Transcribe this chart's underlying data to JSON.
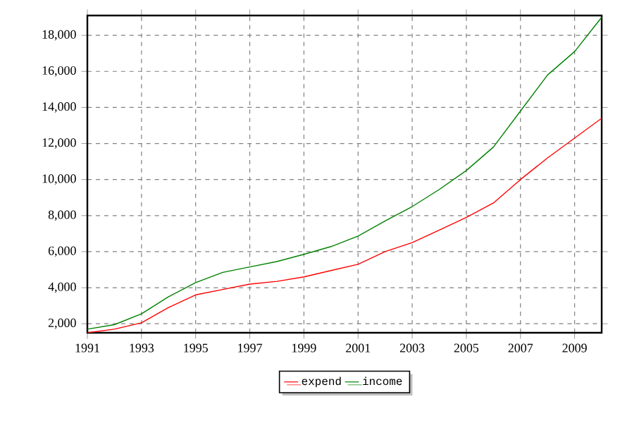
{
  "chart_data": {
    "type": "line",
    "x": [
      1991,
      1992,
      1993,
      1994,
      1995,
      1996,
      1997,
      1998,
      1999,
      2000,
      2001,
      2002,
      2003,
      2004,
      2005,
      2006,
      2007,
      2008,
      2009,
      2010
    ],
    "series": [
      {
        "name": "expend",
        "color": "#ff0000",
        "values": [
          1500,
          1700,
          2050,
          2900,
          3600,
          3900,
          4200,
          4350,
          4600,
          4950,
          5300,
          6000,
          6500,
          7200,
          7900,
          8700,
          10000,
          11200,
          12300,
          13400
        ]
      },
      {
        "name": "income",
        "color": "#008000",
        "values": [
          1700,
          1950,
          2550,
          3500,
          4280,
          4850,
          5150,
          5450,
          5850,
          6280,
          6860,
          7700,
          8500,
          9450,
          10500,
          11800,
          13800,
          15800,
          17100,
          19000
        ]
      }
    ],
    "xlim": [
      1991,
      2010
    ],
    "ylim": [
      1500,
      19100
    ],
    "xticks": [
      1991,
      1993,
      1995,
      1997,
      1999,
      2001,
      2003,
      2005,
      2007,
      2009
    ],
    "yticks": [
      {
        "value": 2000,
        "label": "2,000"
      },
      {
        "value": 4000,
        "label": "4,000"
      },
      {
        "value": 6000,
        "label": "6,000"
      },
      {
        "value": 8000,
        "label": "8,000"
      },
      {
        "value": 10000,
        "label": "10,000"
      },
      {
        "value": 12000,
        "label": "12,000"
      },
      {
        "value": 14000,
        "label": "14,000"
      },
      {
        "value": 16000,
        "label": "16,000"
      },
      {
        "value": 18000,
        "label": "18,000"
      }
    ],
    "grid": true,
    "legend": "bottom"
  }
}
